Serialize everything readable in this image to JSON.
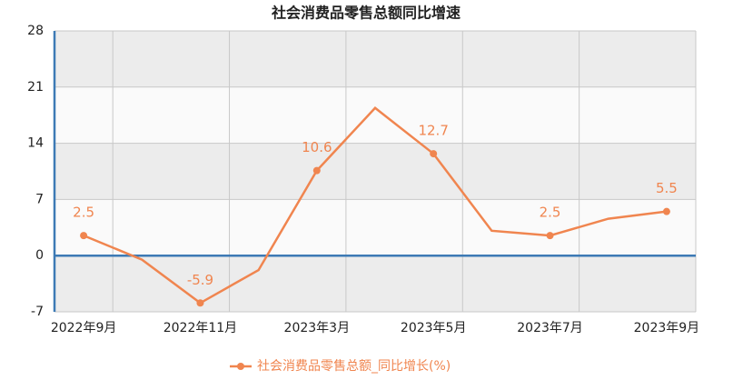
{
  "chart_data": {
    "type": "line",
    "title": "社会消费品零售总额同比增速",
    "categories": [
      "2022年9月",
      null,
      "2022年11月",
      null,
      "2023年3月",
      null,
      "2023年5月",
      null,
      "2023年7月",
      null,
      "2023年9月"
    ],
    "series": [
      {
        "name": "社会消费品零售总额_同比增长(%)",
        "color": "#f0854f",
        "values": [
          2.5,
          -0.5,
          -5.9,
          -1.8,
          10.6,
          18.4,
          12.7,
          3.1,
          2.5,
          4.6,
          5.5
        ]
      }
    ],
    "ylim": [
      -7,
      28
    ],
    "yticks": [
      -7,
      0,
      7,
      14,
      21,
      28
    ],
    "grid": true,
    "legend": "bottom"
  }
}
